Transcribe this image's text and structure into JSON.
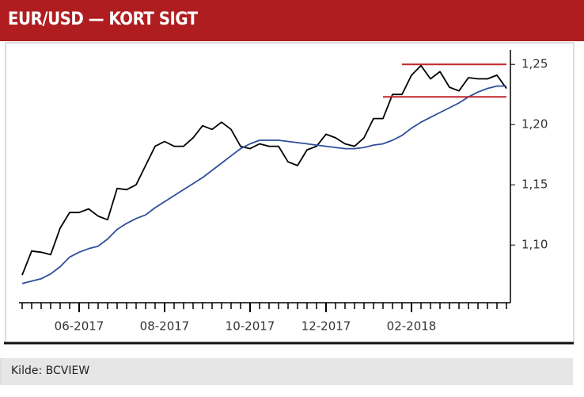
{
  "header": {
    "title": "EUR/USD — KORT SIGT"
  },
  "footer": {
    "source": "Kilde: BCVIEW"
  },
  "chart_data": {
    "type": "line",
    "categories": [
      null,
      null,
      null,
      null,
      null,
      null,
      "06-2017",
      null,
      null,
      null,
      null,
      null,
      null,
      null,
      null,
      "08-2017",
      null,
      null,
      null,
      null,
      null,
      null,
      null,
      null,
      "10-2017",
      null,
      null,
      null,
      null,
      null,
      null,
      null,
      "12-2017",
      null,
      null,
      null,
      null,
      null,
      null,
      null,
      null,
      "02-2018",
      null,
      null,
      null,
      null,
      null,
      null,
      null,
      null,
      null,
      null
    ],
    "series": [
      {
        "color": "#000000",
        "values": [
          1.075,
          1.095,
          1.094,
          1.092,
          1.114,
          1.127,
          1.127,
          1.13,
          1.124,
          1.121,
          1.147,
          1.146,
          1.15,
          1.166,
          1.182,
          1.186,
          1.182,
          1.182,
          1.189,
          1.199,
          1.196,
          1.202,
          1.196,
          1.182,
          1.18,
          1.184,
          1.182,
          1.182,
          1.169,
          1.166,
          1.179,
          1.182,
          1.192,
          1.189,
          1.184,
          1.182,
          1.189,
          1.205,
          1.205,
          1.225,
          1.225,
          1.241,
          1.249,
          1.238,
          1.244,
          1.231,
          1.228,
          1.239,
          1.238,
          1.238,
          1.241,
          1.23
        ]
      },
      {
        "color": "#2f4f9a",
        "values": [
          1.068,
          1.07,
          1.072,
          1.076,
          1.082,
          1.09,
          1.094,
          1.097,
          1.099,
          1.105,
          1.113,
          1.118,
          1.122,
          1.125,
          1.131,
          1.136,
          1.141,
          1.146,
          1.151,
          1.156,
          1.162,
          1.168,
          1.174,
          1.18,
          1.184,
          1.187,
          1.187,
          1.187,
          1.186,
          1.185,
          1.184,
          1.183,
          1.182,
          1.181,
          1.18,
          1.18,
          1.181,
          1.183,
          1.184,
          1.187,
          1.191,
          1.197,
          1.202,
          1.206,
          1.21,
          1.214,
          1.218,
          1.223,
          1.227,
          1.23,
          1.232,
          1.232
        ]
      },
      {
        "color": "#c0262c",
        "values": [
          null,
          null,
          null,
          null,
          null,
          null,
          null,
          null,
          null,
          null,
          null,
          null,
          null,
          null,
          null,
          null,
          null,
          null,
          null,
          null,
          null,
          null,
          null,
          null,
          null,
          null,
          null,
          null,
          null,
          null,
          null,
          null,
          null,
          null,
          null,
          null,
          null,
          null,
          null,
          null,
          1.25,
          1.25,
          1.25,
          1.25,
          1.25,
          1.25,
          1.25,
          1.25,
          1.25,
          1.25,
          1.25,
          1.25
        ]
      },
      {
        "color": "#c0262c",
        "values": [
          null,
          null,
          null,
          null,
          null,
          null,
          null,
          null,
          null,
          null,
          null,
          null,
          null,
          null,
          null,
          null,
          null,
          null,
          null,
          null,
          null,
          null,
          null,
          null,
          null,
          null,
          null,
          null,
          null,
          null,
          null,
          null,
          null,
          null,
          null,
          null,
          null,
          null,
          1.223,
          1.223,
          1.223,
          1.223,
          1.223,
          1.223,
          1.223,
          1.223,
          1.223,
          1.223,
          1.223,
          1.223,
          1.223,
          1.223
        ]
      }
    ],
    "ylim": [
      1.06,
      1.262
    ],
    "yticks": [
      {
        "value": 1.1,
        "label": "1,10"
      },
      {
        "value": 1.15,
        "label": "1,15"
      },
      {
        "value": 1.2,
        "label": "1,20"
      },
      {
        "value": 1.25,
        "label": "1,25"
      }
    ],
    "grid": false
  }
}
